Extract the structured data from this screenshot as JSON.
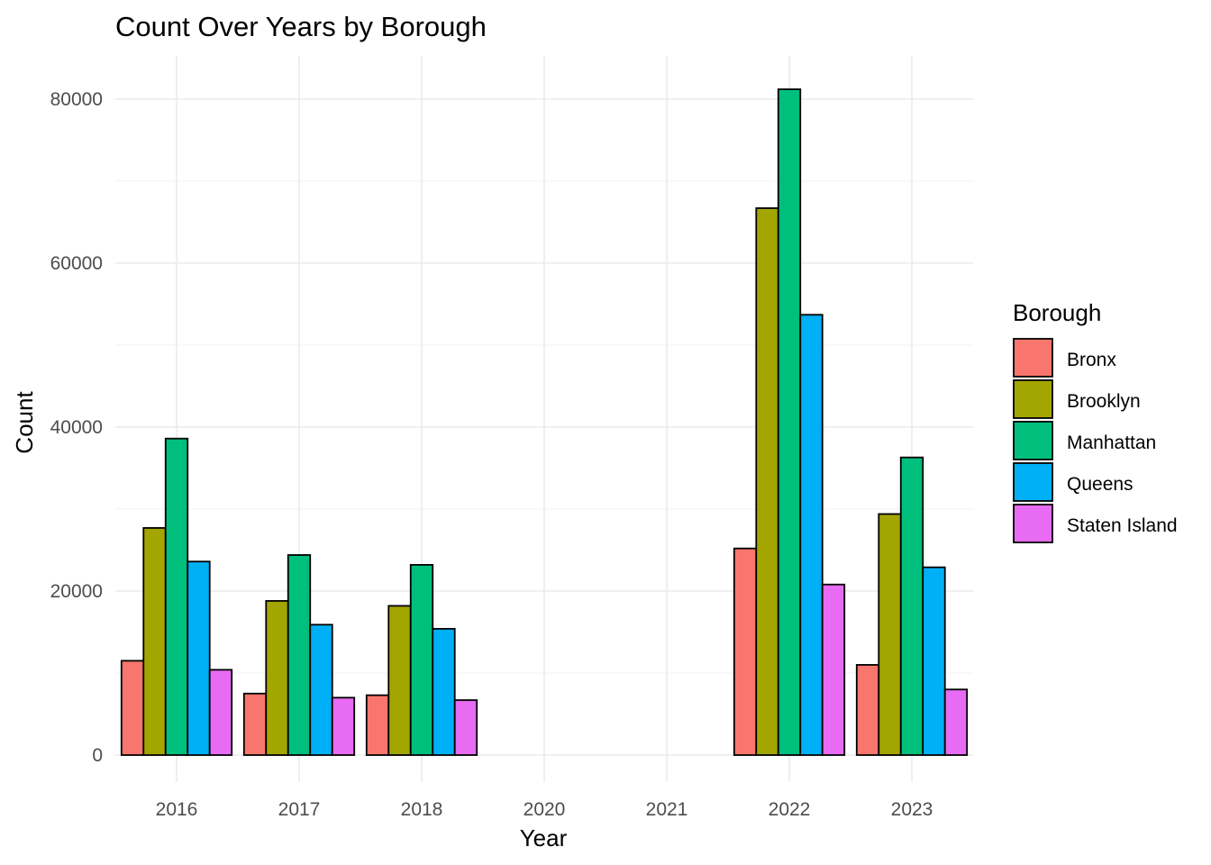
{
  "chart_data": {
    "type": "bar",
    "title": "Count Over Years by Borough",
    "xlabel": "Year",
    "ylabel": "Count",
    "ylim": [
      0,
      85000
    ],
    "yticks": [
      0,
      20000,
      40000,
      60000,
      80000
    ],
    "ytick_labels": [
      "0",
      "20000",
      "40000",
      "60000",
      "80000"
    ],
    "categories": [
      "2016",
      "2017",
      "2018",
      "2020",
      "2021",
      "2022",
      "2023"
    ],
    "legend_title": "Borough",
    "legend_position": "right",
    "grid": true,
    "series": [
      {
        "name": "Bronx",
        "color": "#F8766D",
        "values": [
          11500,
          7500,
          7300,
          0,
          0,
          25200,
          11000
        ]
      },
      {
        "name": "Brooklyn",
        "color": "#A3A500",
        "values": [
          27700,
          18800,
          18200,
          0,
          0,
          66700,
          29400
        ]
      },
      {
        "name": "Manhattan",
        "color": "#00BF7D",
        "values": [
          38600,
          24400,
          23200,
          0,
          0,
          81200,
          36300
        ]
      },
      {
        "name": "Queens",
        "color": "#00B0F6",
        "values": [
          23600,
          15900,
          15400,
          0,
          0,
          53700,
          22900
        ]
      },
      {
        "name": "Staten Island",
        "color": "#E76BF3",
        "values": [
          10400,
          7000,
          6700,
          0,
          0,
          20800,
          8000
        ]
      }
    ]
  }
}
